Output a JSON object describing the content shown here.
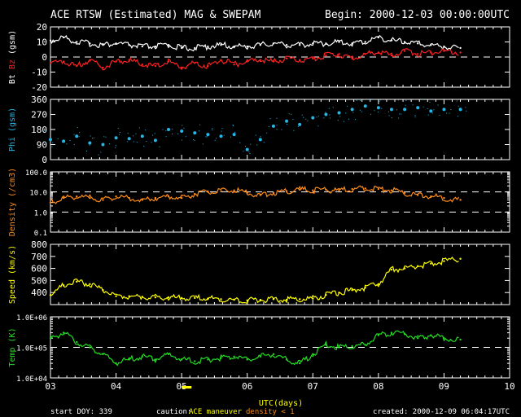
{
  "header": {
    "title": "ACE RTSW (Estimated) MAG & SWEPAM",
    "begin": "Begin: 2000-12-03 00:00:00UTC"
  },
  "footer": {
    "start_doy": "start DOY: 339",
    "caution_label": "caution:",
    "maneuver_label": "ACE maneuver",
    "density_label": "density < 1",
    "created": "created: 2000-12-09 06:04:17UTC"
  },
  "colors": {
    "background": "#000000",
    "axis": "#ffffff",
    "bt": "#ffffff",
    "bz": "#ff2020",
    "phi": "#22b8e8",
    "density": "#ff8c1a",
    "speed": "#ffff00",
    "temp": "#22dd22",
    "maneuver": "#ffff00"
  },
  "chart_data": [
    {
      "type": "line",
      "panel": "magnetic",
      "ylabel": "Bt Bz (gsm)",
      "ylabel_parts": [
        "Bt",
        "Bz",
        "(gsm)"
      ],
      "yticks": [
        -20,
        -10,
        0,
        10,
        20
      ],
      "ylim": [
        -20,
        20
      ],
      "dashed_line": 0,
      "series": [
        {
          "name": "Bt",
          "color_key": "bt",
          "x": [
            3.0,
            3.2,
            3.4,
            3.6,
            3.8,
            4.0,
            4.2,
            4.4,
            4.6,
            4.8,
            5.0,
            5.2,
            5.4,
            5.6,
            5.8,
            6.0,
            6.2,
            6.4,
            6.6,
            6.8,
            7.0,
            7.2,
            7.4,
            7.6,
            7.8,
            8.0,
            8.2,
            8.4,
            8.6,
            8.8,
            9.0,
            9.25
          ],
          "values": [
            11,
            13,
            10,
            9,
            8,
            9,
            8,
            7,
            7,
            8,
            6,
            6,
            7,
            8,
            7,
            7,
            8,
            9,
            8,
            8,
            9,
            9,
            10,
            9,
            10,
            13,
            11,
            10,
            9,
            8,
            7,
            6
          ]
        },
        {
          "name": "Bz",
          "color_key": "bz",
          "x": [
            3.0,
            3.2,
            3.4,
            3.6,
            3.8,
            4.0,
            4.2,
            4.4,
            4.6,
            4.8,
            5.0,
            5.2,
            5.4,
            5.6,
            5.8,
            6.0,
            6.2,
            6.4,
            6.6,
            6.8,
            7.0,
            7.2,
            7.4,
            7.6,
            7.8,
            8.0,
            8.2,
            8.4,
            8.6,
            8.8,
            9.0,
            9.25
          ],
          "values": [
            -4,
            -3,
            -6,
            -2,
            -7,
            -3,
            -2,
            -5,
            -6,
            -3,
            -7,
            -4,
            -6,
            -2,
            -5,
            -3,
            -2,
            -3,
            -1,
            -2,
            -1,
            1,
            2,
            -1,
            2,
            3,
            1,
            4,
            2,
            3,
            4,
            3
          ]
        }
      ]
    },
    {
      "type": "scatter",
      "panel": "phi",
      "ylabel": "Phi (gsm)",
      "yticks": [
        0,
        90,
        180,
        270,
        360
      ],
      "ylim": [
        0,
        360
      ],
      "series": [
        {
          "name": "Phi",
          "color_key": "phi",
          "x": [
            3.0,
            3.2,
            3.4,
            3.6,
            3.8,
            4.0,
            4.2,
            4.4,
            4.6,
            4.8,
            5.0,
            5.2,
            5.4,
            5.6,
            5.8,
            6.0,
            6.2,
            6.4,
            6.6,
            6.8,
            7.0,
            7.2,
            7.4,
            7.6,
            7.8,
            8.0,
            8.2,
            8.4,
            8.6,
            8.8,
            9.0,
            9.25
          ],
          "values": [
            120,
            110,
            140,
            100,
            90,
            130,
            125,
            140,
            115,
            180,
            170,
            160,
            150,
            140,
            150,
            60,
            120,
            200,
            230,
            210,
            250,
            270,
            280,
            300,
            320,
            310,
            300,
            300,
            310,
            290,
            300,
            300
          ]
        }
      ]
    },
    {
      "type": "line",
      "panel": "density",
      "ylabel": "Density (/cm3)",
      "yticks": [
        "0.1",
        "1.0",
        "10.0",
        "100.0"
      ],
      "yscale": "log",
      "ylim": [
        0.1,
        100
      ],
      "dashed_lines": [
        1,
        10
      ],
      "series": [
        {
          "name": "Density",
          "color_key": "density",
          "x": [
            3.0,
            3.2,
            3.4,
            3.6,
            3.8,
            4.0,
            4.2,
            4.4,
            4.6,
            4.8,
            5.0,
            5.2,
            5.4,
            5.6,
            5.8,
            6.0,
            6.2,
            6.4,
            6.6,
            6.8,
            7.0,
            7.2,
            7.4,
            7.6,
            7.8,
            8.0,
            8.2,
            8.4,
            8.6,
            8.8,
            9.0,
            9.25
          ],
          "values": [
            3,
            5,
            6,
            5,
            4,
            6,
            5,
            4,
            5,
            6,
            5,
            8,
            10,
            11,
            12,
            9,
            7,
            9,
            11,
            13,
            12,
            13,
            12,
            14,
            15,
            14,
            12,
            9,
            7,
            6,
            5,
            4
          ]
        }
      ]
    },
    {
      "type": "line",
      "panel": "speed",
      "ylabel": "Speed (km/s)",
      "yticks": [
        400,
        500,
        600,
        700,
        800
      ],
      "ylim": [
        300,
        800
      ],
      "series": [
        {
          "name": "Speed",
          "color_key": "speed",
          "x": [
            3.0,
            3.2,
            3.4,
            3.6,
            3.8,
            4.0,
            4.2,
            4.4,
            4.6,
            4.8,
            5.0,
            5.2,
            5.4,
            5.6,
            5.8,
            6.0,
            6.2,
            6.4,
            6.6,
            6.8,
            7.0,
            7.2,
            7.4,
            7.6,
            7.8,
            8.0,
            8.2,
            8.4,
            8.6,
            8.8,
            9.0,
            9.25
          ],
          "values": [
            380,
            460,
            490,
            470,
            420,
            370,
            370,
            365,
            360,
            360,
            355,
            355,
            350,
            345,
            340,
            335,
            340,
            345,
            340,
            345,
            350,
            380,
            400,
            420,
            440,
            470,
            590,
            600,
            620,
            640,
            660,
            680
          ]
        }
      ]
    },
    {
      "type": "line",
      "panel": "temperature",
      "ylabel": "Temp (K)",
      "yticks": [
        "1.0E+04",
        "1.0E+05",
        "1.0E+06"
      ],
      "yscale": "log",
      "ylim": [
        10000,
        1000000
      ],
      "dashed_line": 100000,
      "xlabel": "UTC(days)",
      "xticks": [
        "03",
        "04",
        "05",
        "06",
        "07",
        "08",
        "09",
        "10"
      ],
      "xlim": [
        3,
        10
      ],
      "series": [
        {
          "name": "Temp",
          "color_key": "temp",
          "x": [
            3.0,
            3.2,
            3.4,
            3.6,
            3.8,
            4.0,
            4.2,
            4.4,
            4.6,
            4.8,
            5.0,
            5.2,
            5.4,
            5.6,
            5.8,
            6.0,
            6.2,
            6.4,
            6.6,
            6.8,
            7.0,
            7.2,
            7.4,
            7.6,
            7.8,
            8.0,
            8.2,
            8.4,
            8.6,
            8.8,
            9.0,
            9.25
          ],
          "values": [
            200000,
            300000,
            150000,
            100000,
            60000,
            30000,
            40000,
            50000,
            40000,
            60000,
            40000,
            35000,
            40000,
            45000,
            50000,
            40000,
            50000,
            60000,
            40000,
            30000,
            60000,
            120000,
            100000,
            110000,
            120000,
            250000,
            300000,
            280000,
            200000,
            250000,
            200000,
            180000
          ]
        }
      ]
    }
  ],
  "maneuver_marker": {
    "x_start": 5.0,
    "x_end": 5.15
  }
}
